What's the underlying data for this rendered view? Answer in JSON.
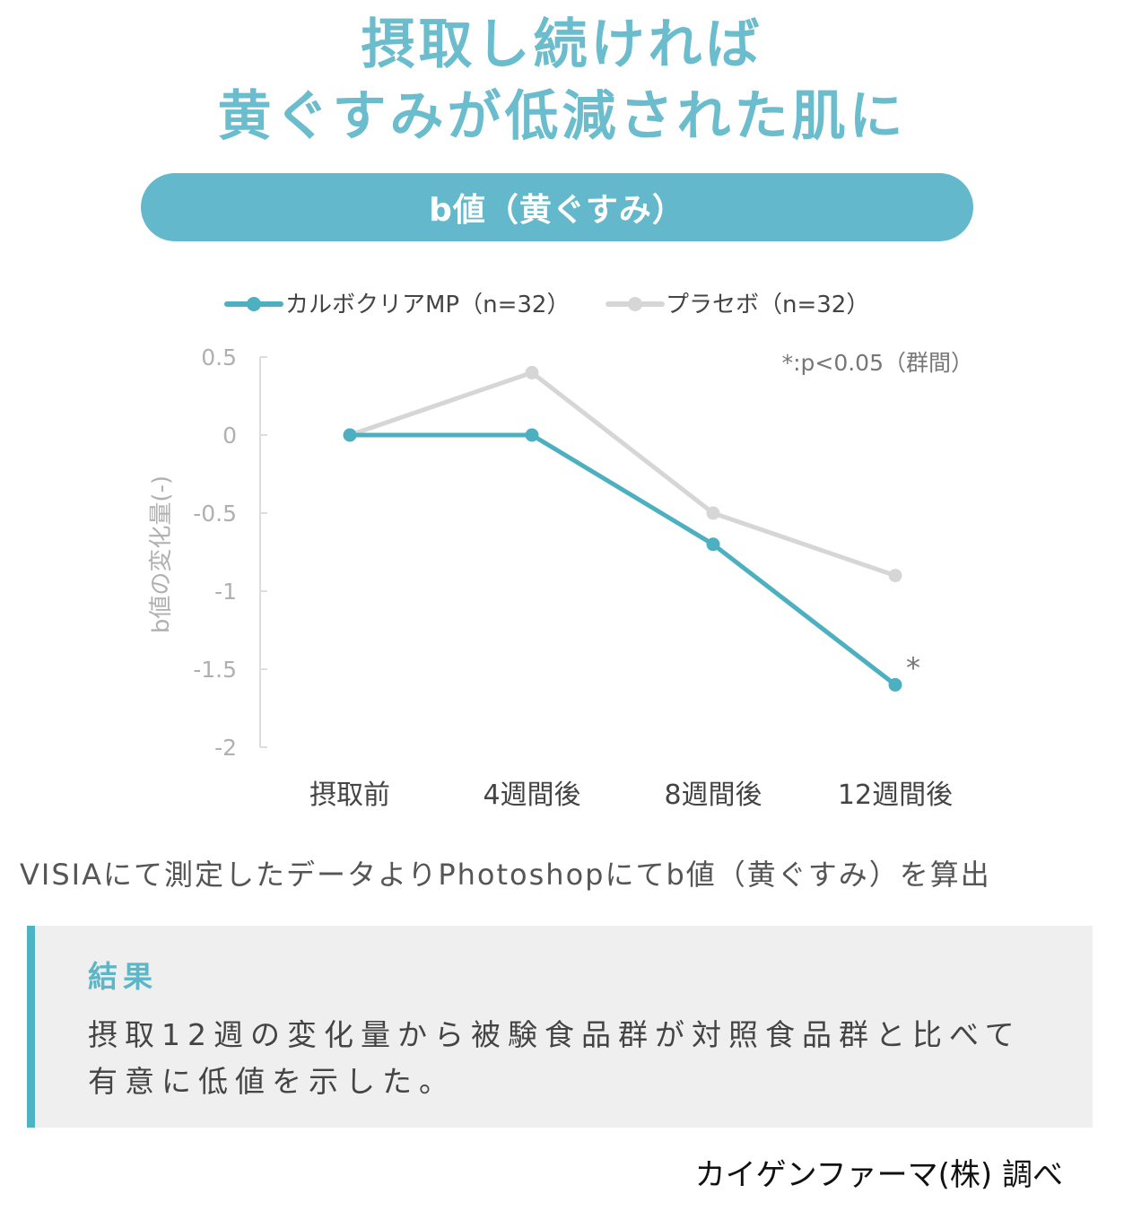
{
  "headline": {
    "line1": "摂取し続ければ",
    "line2": "黄ぐすみが低減された肌に"
  },
  "pill_label": "b値（黄ぐすみ）",
  "colors": {
    "accent": "#63b9cb",
    "series_main": "#4cb0c1",
    "series_placebo": "#d6d6d6",
    "axis_text": "#b0b0b0"
  },
  "chart_data": {
    "type": "line",
    "categories": [
      "摂取前",
      "4週間後",
      "8週間後",
      "12週間後"
    ],
    "series": [
      {
        "name": "カルボクリアMP（n=32）",
        "values": [
          0,
          0,
          -0.7,
          -1.6
        ]
      },
      {
        "name": "プラセボ（n=32）",
        "values": [
          0,
          0.4,
          -0.5,
          -0.9
        ]
      }
    ],
    "ylabel": "b値の変化量(-)",
    "yticks": [
      "0.5",
      "0",
      "-0.5",
      "-1",
      "-1.5",
      "-2"
    ],
    "ylim": [
      -2,
      0.5
    ],
    "significance_note": "*:p<0.05（群間）",
    "significance_marker": "*",
    "legend_position": "top",
    "grid": false
  },
  "method_note": "VISIAにて測定したデータよりPhotoshopにてb値（黄ぐすみ）を算出",
  "result": {
    "title": "結果",
    "body": "摂取12週の変化量から被験食品群が対照食品群と比べて有意に低値を示した。"
  },
  "credit": "カイゲンファーマ(株) 調べ"
}
